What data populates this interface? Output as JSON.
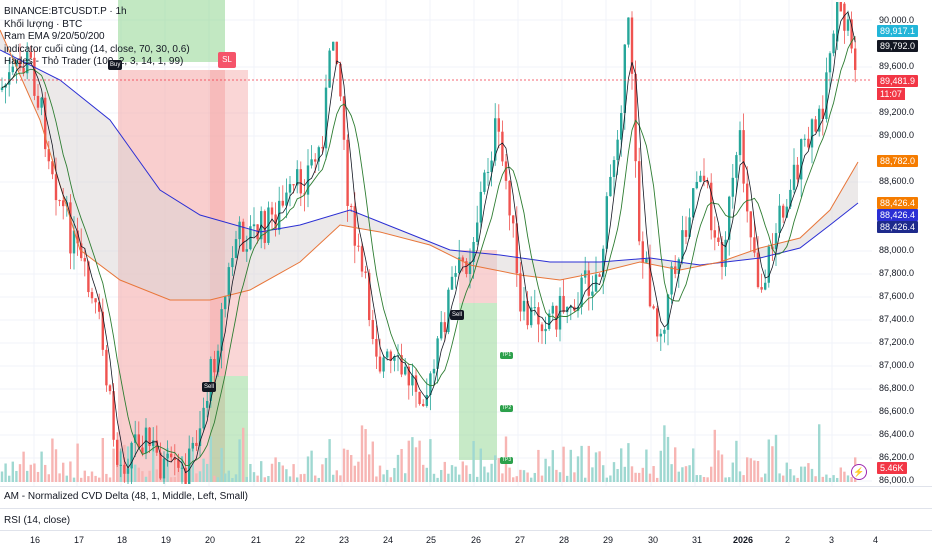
{
  "legend": {
    "symbol": "BINANCE:BTCUSDT.P · 1h",
    "volume": "Khối lượng · BTC",
    "ema": "Ram EMA 9/20/50/200",
    "indicator": "indicator cuối cùng (14, close, 70, 30, 0.6)",
    "hades": "Hades - Thỏ Trader (100, 2, 3, 14, 1, 99)"
  },
  "panes": {
    "cvd": "AM - Normalized CVD Delta (48, 1, Middle, Left, Small)",
    "rsi": "RSI (14, close)"
  },
  "y_axis": [
    "90,000.0",
    "89,600.0",
    "89,200.0",
    "89,000.0",
    "88,600.0",
    "88,000.0",
    "87,800.0",
    "87,600.0",
    "87,400.0",
    "87,200.0",
    "87,000.0",
    "86,800.0",
    "86,600.0",
    "86,400.0",
    "86,200.0",
    "86,000.0"
  ],
  "x_axis": [
    "16",
    "17",
    "18",
    "19",
    "20",
    "21",
    "22",
    "23",
    "24",
    "25",
    "26",
    "27",
    "28",
    "29",
    "30",
    "31",
    "2026",
    "2",
    "3",
    "4"
  ],
  "price_tags": {
    "high": "89,917.1",
    "ema_fast": "89,792.0",
    "last": "89,481.9",
    "timer": "11:07",
    "orange": "88,782.0",
    "band_top": "88,426.4",
    "band_mid": "88,426.4",
    "band_low": "88,426.4",
    "volume": "5.46K"
  },
  "markers": {
    "sl": "SL",
    "buy": "Buy",
    "sell": "Sell",
    "sell2": "Sell",
    "tp1": "TP1",
    "tp2": "TP2",
    "tp3": "TP3"
  },
  "colors": {
    "up": "#26a69a",
    "down": "#ef5350",
    "ema_blue": "#2a2ed4",
    "ema_orange": "#e8763a",
    "last_price": "#f23645",
    "cyan": "#22b5d8",
    "navy": "#1e2a8c"
  }
}
